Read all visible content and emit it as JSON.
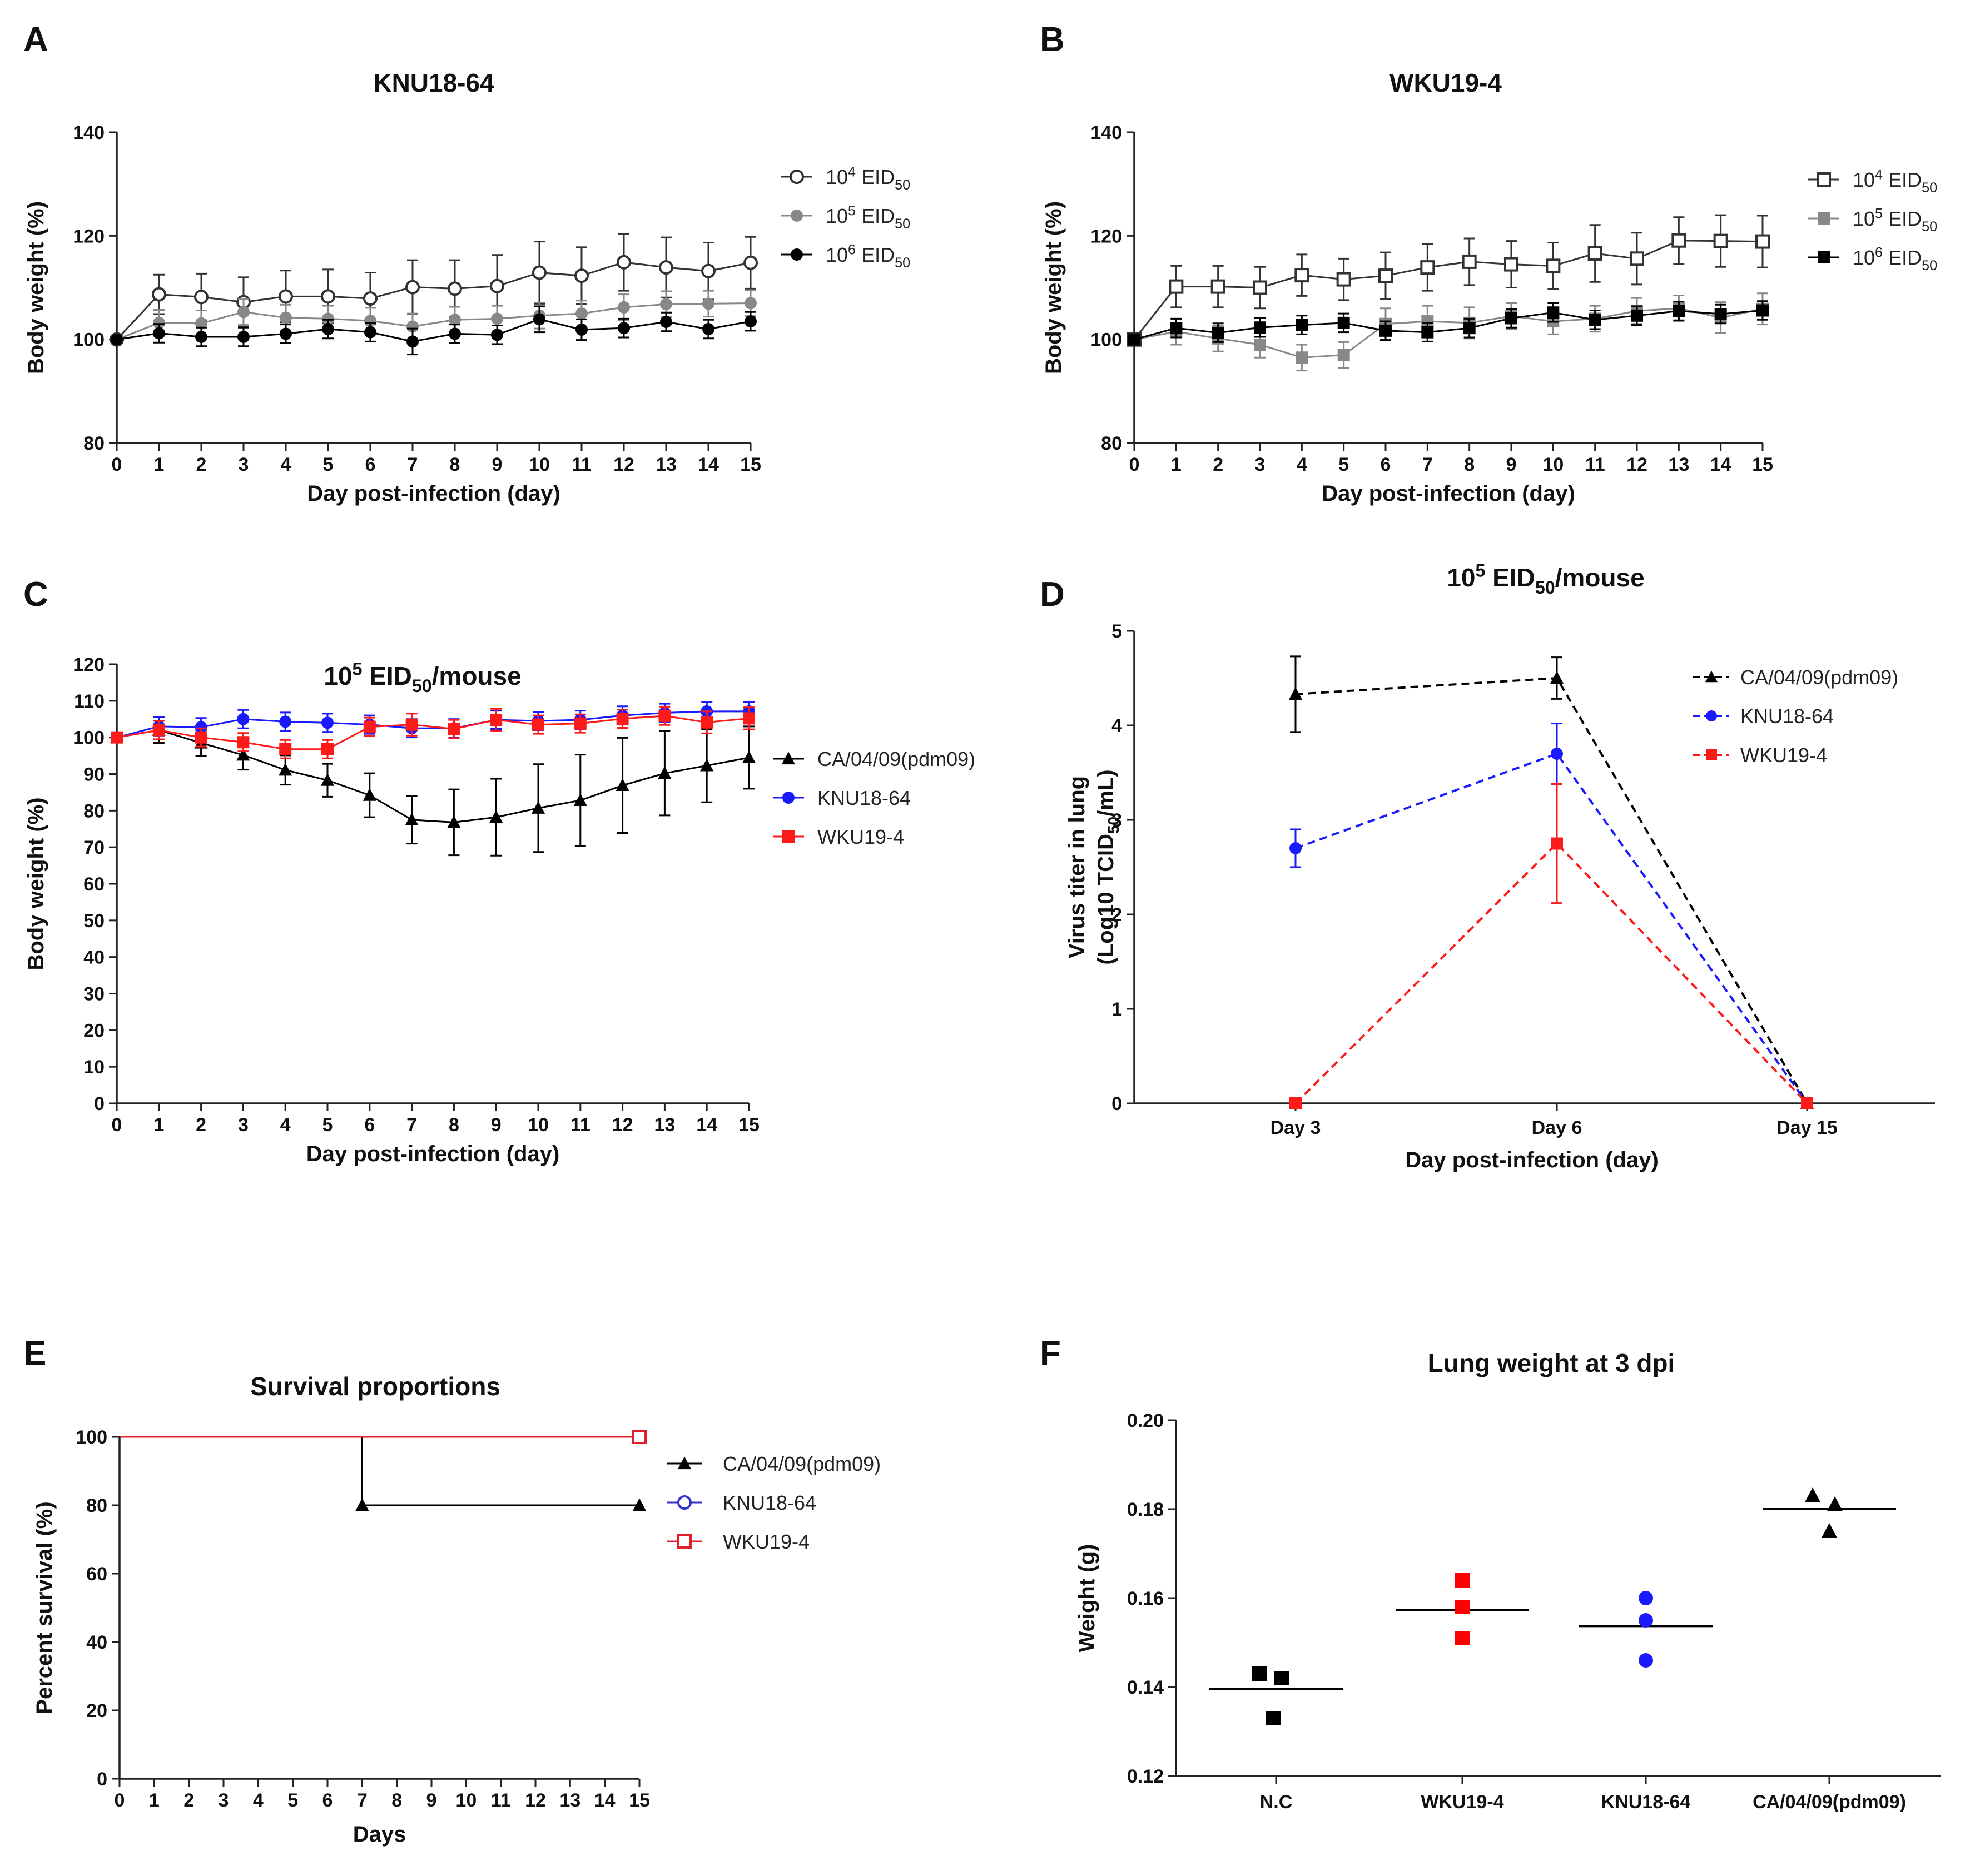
{
  "panel_labels": [
    "A",
    "B",
    "C",
    "D",
    "E",
    "F"
  ],
  "chart_data": [
    {
      "id": "A",
      "type": "line",
      "title": "KNU18-64",
      "xlabel": "Day post-infection (day)",
      "ylabel": "Body weight (%)",
      "x": [
        0,
        1,
        2,
        3,
        4,
        5,
        6,
        7,
        8,
        9,
        10,
        11,
        12,
        13,
        14,
        15
      ],
      "xlim": [
        0,
        15
      ],
      "ylim": [
        80,
        140
      ],
      "yticks": [
        80,
        100,
        120,
        140
      ],
      "series": [
        {
          "name": "10^4 EID50",
          "legend_base": "10",
          "legend_exp": "4",
          "legend_unit": "EID",
          "legend_sub": "50",
          "marker": "circle",
          "fill": "open",
          "color": "#333333",
          "values": [
            100,
            108.7,
            108.2,
            107.2,
            108.3,
            108.3,
            107.9,
            110.1,
            109.8,
            110.3,
            112.9,
            112.3,
            114.9,
            113.9,
            113.2,
            114.8
          ],
          "errors": [
            0,
            3.8,
            4.5,
            4.8,
            5.0,
            5.2,
            5.0,
            5.2,
            5.5,
            6.0,
            6.0,
            5.5,
            5.5,
            5.8,
            5.5,
            5.0
          ]
        },
        {
          "name": "10^5 EID50",
          "legend_base": "10",
          "legend_exp": "5",
          "legend_unit": "EID",
          "legend_sub": "50",
          "marker": "circle",
          "fill": "solid",
          "color": "#888888",
          "values": [
            100,
            103.2,
            103.1,
            105.3,
            104.2,
            104.0,
            103.6,
            102.5,
            103.8,
            104.0,
            104.6,
            105.0,
            106.2,
            106.8,
            106.9,
            107.0
          ],
          "errors": [
            0,
            2.5,
            2.5,
            2.5,
            2.5,
            2.5,
            2.5,
            2.5,
            2.5,
            2.5,
            2.5,
            2.5,
            2.5,
            2.5,
            2.5,
            2.5
          ]
        },
        {
          "name": "10^6 EID50",
          "legend_base": "10",
          "legend_exp": "6",
          "legend_unit": "EID",
          "legend_sub": "50",
          "marker": "circle",
          "fill": "solid",
          "color": "#000000",
          "values": [
            100,
            101.2,
            100.5,
            100.5,
            101.1,
            102.0,
            101.4,
            99.6,
            101.1,
            100.9,
            103.9,
            101.9,
            102.2,
            103.4,
            102.0,
            103.5
          ],
          "errors": [
            0,
            1.8,
            1.8,
            1.8,
            1.8,
            1.8,
            1.8,
            2.5,
            1.8,
            1.8,
            2.5,
            2.0,
            1.8,
            1.8,
            1.8,
            1.8
          ]
        }
      ],
      "legend": "right"
    },
    {
      "id": "B",
      "type": "line",
      "title": "WKU19-4",
      "xlabel": "Day post-infection (day)",
      "ylabel": "Body weight (%)",
      "x": [
        0,
        1,
        2,
        3,
        4,
        5,
        6,
        7,
        8,
        9,
        10,
        11,
        12,
        13,
        14,
        15
      ],
      "xlim": [
        0,
        15
      ],
      "ylim": [
        80,
        140
      ],
      "yticks": [
        80,
        100,
        120,
        140
      ],
      "series": [
        {
          "name": "10^4 EID50",
          "legend_base": "10",
          "legend_exp": "4",
          "legend_unit": "EID",
          "legend_sub": "50",
          "marker": "square",
          "fill": "open",
          "color": "#333333",
          "values": [
            100,
            110.2,
            110.2,
            110.0,
            112.4,
            111.6,
            112.3,
            113.9,
            115.0,
            114.5,
            114.2,
            116.6,
            115.6,
            119.1,
            119.0,
            118.9
          ],
          "errors": [
            0,
            4.0,
            4.0,
            4.0,
            4.0,
            4.0,
            4.5,
            4.5,
            4.5,
            4.5,
            4.5,
            5.5,
            5.0,
            4.5,
            5.0,
            5.0
          ]
        },
        {
          "name": "10^5 EID50",
          "legend_base": "10",
          "legend_exp": "5",
          "legend_unit": "EID",
          "legend_sub": "50",
          "marker": "square",
          "fill": "solid",
          "color": "#888888",
          "values": [
            100,
            101.5,
            100.2,
            99.0,
            96.5,
            97.0,
            103.0,
            103.5,
            103.2,
            104.5,
            103.5,
            104.0,
            105.5,
            106.0,
            104.2,
            105.9
          ],
          "errors": [
            0,
            2.5,
            2.5,
            2.5,
            2.5,
            2.5,
            3.0,
            3.0,
            3.0,
            2.5,
            2.5,
            2.5,
            2.5,
            2.5,
            3.0,
            3.0
          ]
        },
        {
          "name": "10^6 EID50",
          "legend_base": "10",
          "legend_exp": "6",
          "legend_unit": "EID",
          "legend_sub": "50",
          "marker": "square",
          "fill": "solid",
          "color": "#000000",
          "values": [
            100,
            102.2,
            101.3,
            102.3,
            102.8,
            103.2,
            101.7,
            101.4,
            102.2,
            104.1,
            105.2,
            103.8,
            104.6,
            105.5,
            104.9,
            105.6
          ],
          "errors": [
            0,
            1.8,
            1.8,
            1.8,
            1.8,
            1.8,
            1.8,
            1.8,
            1.8,
            1.8,
            1.8,
            1.8,
            1.8,
            1.8,
            1.8,
            1.8
          ]
        }
      ],
      "legend": "right"
    },
    {
      "id": "C",
      "type": "line",
      "title_base": "10",
      "title_exp": "5",
      "title_unit": "EID",
      "title_sub": "50",
      "title_tail": "/mouse",
      "xlabel": "Day post-infection (day)",
      "ylabel": "Body weight (%)",
      "x": [
        0,
        1,
        2,
        3,
        4,
        5,
        6,
        7,
        8,
        9,
        10,
        11,
        12,
        13,
        14,
        15
      ],
      "xlim": [
        0,
        15
      ],
      "ylim": [
        0,
        120
      ],
      "yticks": [
        0,
        10,
        20,
        30,
        40,
        50,
        60,
        70,
        80,
        90,
        100,
        110,
        120
      ],
      "series": [
        {
          "name": "CA/04/09(pdm09)",
          "marker": "triangle",
          "fill": "solid",
          "color": "#000000",
          "values": [
            100,
            102,
            98.5,
            95.2,
            91.1,
            88.3,
            84.2,
            77.5,
            76.8,
            78.2,
            80.7,
            82.8,
            86.9,
            90.2,
            92.3,
            94.5
          ],
          "errors": [
            0,
            3.5,
            3.5,
            4.0,
            4.0,
            4.5,
            6.0,
            6.5,
            9.0,
            10.5,
            12.0,
            12.5,
            13.0,
            11.5,
            10.0,
            8.5
          ]
        },
        {
          "name": "KNU18-64",
          "marker": "circle",
          "fill": "solid",
          "color": "#1a1aff",
          "values": [
            100,
            103,
            102.8,
            105,
            104.3,
            104,
            103.5,
            102.5,
            102.5,
            104.8,
            104.5,
            104.8,
            106,
            106.7,
            107.1,
            107.1
          ],
          "errors": [
            0,
            2.5,
            2.5,
            2.5,
            2.5,
            2.5,
            2.5,
            2.5,
            2.5,
            2.5,
            2.5,
            2.5,
            2.5,
            2.5,
            2.5,
            2.5
          ]
        },
        {
          "name": "WKU19-4",
          "marker": "square",
          "fill": "solid",
          "color": "#ff1a1a",
          "values": [
            100,
            102,
            100,
            98.7,
            96.8,
            96.8,
            102.9,
            103.5,
            102.3,
            104.8,
            103.5,
            103.8,
            105.1,
            105.9,
            104.1,
            105.2
          ],
          "errors": [
            0,
            2.5,
            2.5,
            2.5,
            2.5,
            2.5,
            2.5,
            3.0,
            2.5,
            3.0,
            2.5,
            2.5,
            2.5,
            2.5,
            3.0,
            3.0
          ]
        }
      ],
      "legend": "right"
    },
    {
      "id": "D",
      "type": "line",
      "title_base": "10",
      "title_exp": "5",
      "title_unit": "EID",
      "title_sub": "50",
      "title_tail": "/mouse",
      "xlabel": "Day post-infection (day)",
      "ylabel_line1": "Virus titer in lung",
      "ylabel_line2_pre": "(Log10 TCID",
      "ylabel_line2_sub": "50",
      "ylabel_line2_post": "/mL)",
      "categories": [
        "Day 3",
        "Day 6",
        "Day 15"
      ],
      "ylim": [
        0,
        5
      ],
      "yticks": [
        0,
        1,
        2,
        3,
        4,
        5
      ],
      "series": [
        {
          "name": "CA/04/09(pdm09)",
          "marker": "triangle",
          "color": "#000000",
          "dashed": true,
          "values": [
            4.33,
            4.5,
            0
          ],
          "errors": [
            0.4,
            0.22,
            0
          ]
        },
        {
          "name": "KNU18-64",
          "marker": "circle",
          "color": "#1a1aff",
          "dashed": true,
          "values": [
            2.7,
            3.7,
            0
          ],
          "errors": [
            0.2,
            0.32,
            0
          ]
        },
        {
          "name": "WKU19-4",
          "marker": "square",
          "color": "#ff1a1a",
          "dashed": true,
          "values": [
            0,
            2.75,
            0
          ],
          "errors": [
            0,
            0.63,
            0
          ]
        }
      ],
      "legend": "top-right"
    },
    {
      "id": "E",
      "type": "line",
      "title": "Survival proportions",
      "xlabel": "Days",
      "ylabel": "Percent survival (%)",
      "xlim": [
        0,
        15
      ],
      "xticks": [
        0,
        1,
        2,
        3,
        4,
        5,
        6,
        7,
        8,
        9,
        10,
        11,
        12,
        13,
        14,
        15
      ],
      "ylim": [
        0,
        100
      ],
      "yticks": [
        0,
        20,
        40,
        60,
        80,
        100
      ],
      "series": [
        {
          "name": "CA/04/09(pdm09)",
          "marker": "triangle",
          "fill": "solid",
          "color": "#000000",
          "steps": [
            [
              0,
              100
            ],
            [
              7,
              100
            ],
            [
              7,
              80
            ],
            [
              15,
              80
            ]
          ],
          "markers_at": [
            [
              7,
              80
            ],
            [
              15,
              80
            ]
          ]
        },
        {
          "name": "KNU18-64",
          "marker": "circle",
          "fill": "open",
          "color": "#3333cc",
          "steps": [
            [
              0,
              100
            ],
            [
              15,
              100
            ]
          ],
          "markers_at": [
            [
              15,
              100
            ]
          ]
        },
        {
          "name": "WKU19-4",
          "marker": "square",
          "fill": "open",
          "color": "#e0202a",
          "steps": [
            [
              0,
              100
            ],
            [
              15,
              100
            ]
          ],
          "markers_at": [
            [
              15,
              100
            ]
          ]
        }
      ],
      "legend": "right"
    },
    {
      "id": "F",
      "type": "scatter",
      "title": "Lung weight at 3 dpi",
      "xlabel": "",
      "ylabel": "Weight (g)",
      "categories": [
        "N.C",
        "WKU19-4",
        "KNU18-64",
        "CA/04/09(pdm09)"
      ],
      "ylim": [
        0.12,
        0.2
      ],
      "yticks": [
        "0.12",
        "0.14",
        "0.16",
        "0.18",
        "0.20"
      ],
      "groups": [
        {
          "name": "N.C",
          "marker": "square",
          "color": "#000000",
          "points": [
            0.143,
            0.142,
            0.133
          ],
          "offsets": [
            -0.3,
            0.1,
            -0.05
          ],
          "mean": 0.1395
        },
        {
          "name": "WKU19-4",
          "marker": "square",
          "color": "#ff0000",
          "points": [
            0.164,
            0.158,
            0.151
          ],
          "offsets": [
            0,
            0,
            0
          ],
          "mean": 0.1573
        },
        {
          "name": "KNU18-64",
          "marker": "circle",
          "color": "#1a1aff",
          "points": [
            0.16,
            0.155,
            0.146
          ],
          "offsets": [
            0,
            0,
            0
          ],
          "mean": 0.1537
        },
        {
          "name": "CA/04/09(pdm09)",
          "marker": "triangle",
          "color": "#000000",
          "points": [
            0.183,
            0.181,
            0.175
          ],
          "offsets": [
            -0.3,
            0.1,
            0
          ],
          "mean": 0.18
        }
      ]
    }
  ]
}
